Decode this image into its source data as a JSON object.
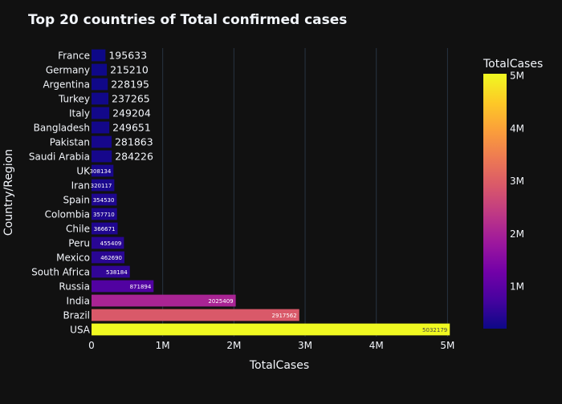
{
  "chart_data": {
    "type": "bar",
    "orientation": "horizontal",
    "title": "Top 20 countries of Total confirmed cases",
    "xlabel": "TotalCases",
    "ylabel": "Country/Region",
    "xlim": [
      0,
      5300000
    ],
    "x_ticks": [
      {
        "value": 0,
        "label": "0"
      },
      {
        "value": 1000000,
        "label": "1M"
      },
      {
        "value": 2000000,
        "label": "2M"
      },
      {
        "value": 3000000,
        "label": "3M"
      },
      {
        "value": 4000000,
        "label": "4M"
      },
      {
        "value": 5000000,
        "label": "5M"
      }
    ],
    "grid": true,
    "categories": [
      "USA",
      "Brazil",
      "India",
      "Russia",
      "South Africa",
      "Mexico",
      "Peru",
      "Chile",
      "Colombia",
      "Spain",
      "Iran",
      "UK",
      "Saudi Arabia",
      "Pakistan",
      "Bangladesh",
      "Italy",
      "Turkey",
      "Argentina",
      "Germany",
      "France"
    ],
    "values": [
      5032179,
      2917562,
      2025409,
      871894,
      538184,
      462690,
      455409,
      366671,
      357710,
      354530,
      320117,
      308134,
      284226,
      281863,
      249651,
      249204,
      237265,
      228195,
      215210,
      195633
    ],
    "colorbar": {
      "title": "TotalCases",
      "range": [
        195633,
        5032179
      ],
      "ticks": [
        {
          "value": 1000000,
          "label": "1M"
        },
        {
          "value": 2000000,
          "label": "2M"
        },
        {
          "value": 3000000,
          "label": "3M"
        },
        {
          "value": 4000000,
          "label": "4M"
        },
        {
          "value": 5000000,
          "label": "5M"
        }
      ],
      "colorscale": [
        "#0d0887",
        "#46039f",
        "#7201a8",
        "#9c179e",
        "#bd3786",
        "#d8576b",
        "#ed7953",
        "#fb9f3a",
        "#fdca26",
        "#f0f921"
      ]
    },
    "colors": {
      "background": "#111111",
      "grid": "#283442",
      "text": "#f2f5fa"
    }
  }
}
